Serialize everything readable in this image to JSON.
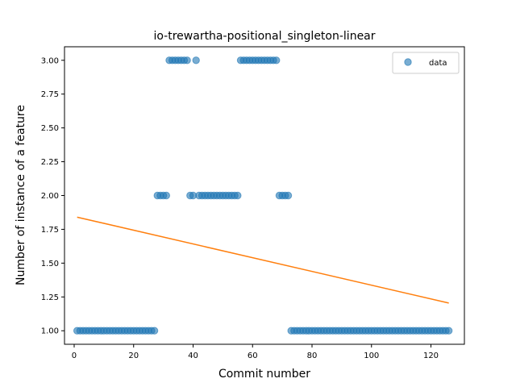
{
  "chart_data": {
    "type": "scatter",
    "title": "io-trewartha-positional_singleton-linear",
    "xlabel": "Commit number",
    "ylabel": "Number of instance of a feature",
    "xlim": [
      -3.25,
      131.25
    ],
    "ylim": [
      0.9,
      3.1
    ],
    "xticks": [
      0,
      20,
      40,
      60,
      80,
      100,
      120
    ],
    "yticks": [
      1.0,
      1.25,
      1.5,
      1.75,
      2.0,
      2.25,
      2.5,
      2.75,
      3.0
    ],
    "ytick_labels": [
      "1.00",
      "1.25",
      "1.50",
      "1.75",
      "2.00",
      "2.25",
      "2.50",
      "2.75",
      "3.00"
    ],
    "grid": false,
    "legend": {
      "entries": [
        "data"
      ],
      "position": "top-right"
    },
    "colors": {
      "points": "#1f77b4",
      "fit_line": "#ff7f0e"
    },
    "series": [
      {
        "name": "data",
        "kind": "scatter",
        "x": [
          1,
          2,
          3,
          4,
          5,
          6,
          7,
          8,
          9,
          10,
          11,
          12,
          13,
          14,
          15,
          16,
          17,
          18,
          19,
          20,
          21,
          22,
          23,
          24,
          25,
          26,
          27,
          28,
          29,
          30,
          31,
          32,
          33,
          34,
          35,
          36,
          37,
          38,
          39,
          40,
          41,
          42,
          43,
          44,
          45,
          46,
          47,
          48,
          49,
          50,
          51,
          52,
          53,
          54,
          55,
          56,
          57,
          58,
          59,
          60,
          61,
          62,
          63,
          64,
          65,
          66,
          67,
          68,
          69,
          70,
          71,
          72,
          73,
          74,
          75,
          76,
          77,
          78,
          79,
          80,
          81,
          82,
          83,
          84,
          85,
          86,
          87,
          88,
          89,
          90,
          91,
          92,
          93,
          94,
          95,
          96,
          97,
          98,
          99,
          100,
          101,
          102,
          103,
          104,
          105,
          106,
          107,
          108,
          109,
          110,
          111,
          112,
          113,
          114,
          115,
          116,
          117,
          118,
          119,
          120,
          121,
          122,
          123,
          124,
          125,
          126
        ],
        "y": [
          1,
          1,
          1,
          1,
          1,
          1,
          1,
          1,
          1,
          1,
          1,
          1,
          1,
          1,
          1,
          1,
          1,
          1,
          1,
          1,
          1,
          1,
          1,
          1,
          1,
          1,
          1,
          2,
          2,
          2,
          2,
          3,
          3,
          3,
          3,
          3,
          3,
          3,
          2,
          2,
          3,
          2,
          2,
          2,
          2,
          2,
          2,
          2,
          2,
          2,
          2,
          2,
          2,
          2,
          2,
          3,
          3,
          3,
          3,
          3,
          3,
          3,
          3,
          3,
          3,
          3,
          3,
          3,
          2,
          2,
          2,
          2,
          1,
          1,
          1,
          1,
          1,
          1,
          1,
          1,
          1,
          1,
          1,
          1,
          1,
          1,
          1,
          1,
          1,
          1,
          1,
          1,
          1,
          1,
          1,
          1,
          1,
          1,
          1,
          1,
          1,
          1,
          1,
          1,
          1,
          1,
          1,
          1,
          1,
          1,
          1,
          1,
          1,
          1,
          1,
          1,
          1,
          1,
          1,
          1,
          1,
          1,
          1,
          1,
          1,
          1
        ]
      },
      {
        "kind": "line",
        "x": [
          1,
          126
        ],
        "y": [
          1.84,
          1.205
        ]
      }
    ]
  }
}
